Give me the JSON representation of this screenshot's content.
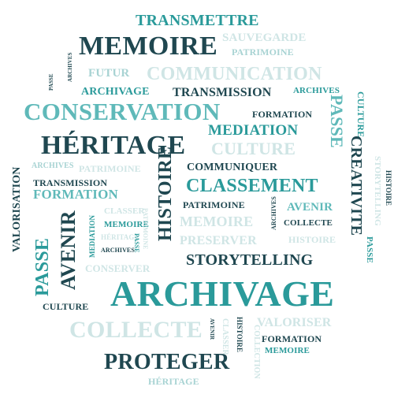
{
  "words": {
    "transmettre": "TRANSMETTRE",
    "memoire_big": "MEMOIRE",
    "sauvegarde": "SAUVEGARDE",
    "patrimoine_top": "PATRIMOINE",
    "futur": "FUTUR",
    "communication": "COMMUNICATION",
    "archivage_small": "ARCHIVAGE",
    "transmission_mid": "TRANSMISSION",
    "archives_top_right": "ARCHIVES",
    "conservation": "CONSERVATION",
    "formation_mid": "FORMATION",
    "mediation_mid": "MEDIATION",
    "heritage_big": "HÉRITAGE",
    "culture_light": "CULTURE",
    "passe_right": "PASSE",
    "culture_right_v": "CULTURE",
    "creativite": "CREATIVITE",
    "storytelling_v": "STORYTELLING",
    "histoire_v_right": "HISTOIRE",
    "valorisation": "VALORISATION",
    "archives_left": "ARCHIVES",
    "patrimoine_light": "PATRIMOINE",
    "communiquer": "COMMUNIQUER",
    "transmission_left": "TRANSMISSION",
    "formation_left": "FORMATION",
    "classement": "CLASSEMENT",
    "histoire_v_center": "HISTOIRE",
    "passe_left_v": "PASSE",
    "avenir_v_left": "AVENIR",
    "mediation_v": "MEDIATION",
    "classer_light": "CLASSER",
    "memoire_small": "MEMOIRE",
    "heritage_small_light": "HÉRITAGE",
    "archives_small": "ARCHIVES",
    "patrimoine_small": "PATRIMOINE",
    "memoire_light": "MEMOIRE",
    "archives_v_mid": "ARCHIVES",
    "avenir_right": "AVENIR",
    "collecte_small": "COLLECTE",
    "histoire_light_right": "HISTOIRE",
    "preserver": "PRESERVER",
    "conserver": "CONSERVER",
    "storytelling_big": "STORYTELLING",
    "archivage_big": "ARCHIVAGE",
    "culture_bottom": "CULTURE",
    "collecte_big": "COLLECTE",
    "valoriser": "VALORISER",
    "avenir_v_small": "AVENIR",
    "classer_v": "CLASSER",
    "histoire_v_small": "HISTOIRE",
    "collection_v": "COLLECTION",
    "formation_small": "FORMATION",
    "memoire_bottom": "MEMOIRE",
    "proteger": "PROTEGER",
    "heritage_bottom": "HÉRITAGE",
    "passe_tiny_v": "PASSE",
    "archives_tiny_v": "ARCHIVES",
    "archives_tiny_v2": "ARCHIVES",
    "passe_small_v": "PASSE",
    "histoire_v_far_right": "HISTOIRE",
    "storytelling_tiny": "STORYTELLING",
    "passe_far_right_v": "PASSE"
  },
  "colors": {
    "dark": "#1f4750",
    "teal": "#2a9a9a",
    "mid": "#5fb9b9",
    "light": "#cfe5e5"
  }
}
